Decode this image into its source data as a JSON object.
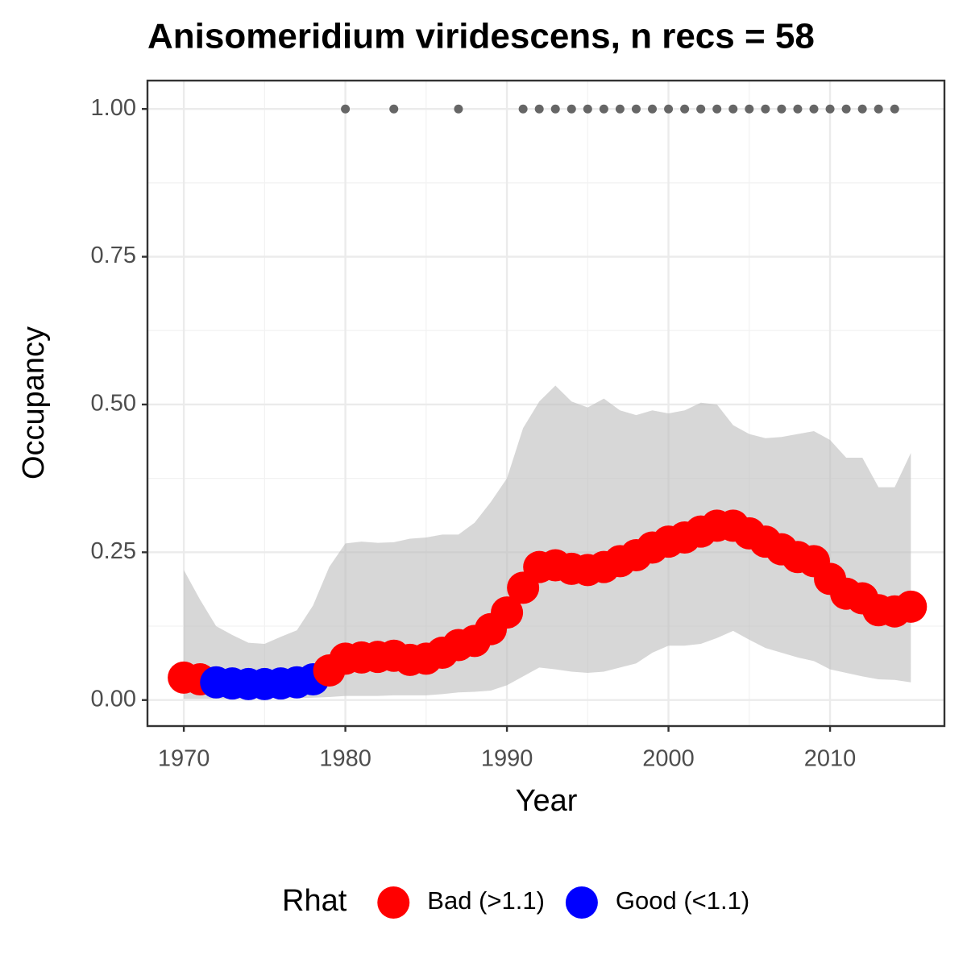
{
  "chart_data": {
    "type": "scatter",
    "title": "Anisomeridium viridescens, n recs = 58",
    "x_label": "Year",
    "y_label": "Occupancy",
    "x": [
      1970,
      1971,
      1972,
      1973,
      1974,
      1975,
      1976,
      1977,
      1978,
      1979,
      1980,
      1981,
      1982,
      1983,
      1984,
      1985,
      1986,
      1987,
      1988,
      1989,
      1990,
      1991,
      1992,
      1993,
      1994,
      1995,
      1996,
      1997,
      1998,
      1999,
      2000,
      2001,
      2002,
      2003,
      2004,
      2005,
      2006,
      2007,
      2008,
      2009,
      2010,
      2011,
      2012,
      2013,
      2014,
      2015
    ],
    "series": [
      {
        "name": "Bad (>1.1)",
        "color": "#ff0000",
        "values": [
          0.038,
          0.035,
          null,
          null,
          null,
          null,
          null,
          null,
          null,
          0.05,
          0.07,
          0.072,
          0.073,
          0.075,
          0.068,
          0.07,
          0.08,
          0.093,
          0.1,
          0.12,
          0.148,
          0.19,
          0.225,
          0.228,
          0.222,
          0.22,
          0.225,
          0.235,
          0.245,
          0.258,
          0.268,
          0.275,
          0.285,
          0.295,
          0.295,
          0.282,
          0.268,
          0.255,
          0.242,
          0.235,
          0.205,
          0.18,
          0.172,
          0.152,
          0.15,
          0.158
        ]
      },
      {
        "name": "Good (<1.1)",
        "color": "#0000ff",
        "values": [
          null,
          null,
          0.03,
          0.028,
          0.027,
          0.027,
          0.028,
          0.03,
          0.035,
          null,
          null,
          null,
          null,
          null,
          null,
          null,
          null,
          null,
          null,
          null,
          null,
          null,
          null,
          null,
          null,
          null,
          null,
          null,
          null,
          null,
          null,
          null,
          null,
          null,
          null,
          null,
          null,
          null,
          null,
          null,
          null,
          null,
          null,
          null,
          null,
          null
        ]
      }
    ],
    "ribbon": {
      "color": "#bdbdbd",
      "upper": [
        0.22,
        0.17,
        0.125,
        0.11,
        0.097,
        0.095,
        0.107,
        0.118,
        0.16,
        0.225,
        0.265,
        0.268,
        0.266,
        0.267,
        0.273,
        0.275,
        0.28,
        0.28,
        0.3,
        0.335,
        0.375,
        0.46,
        0.505,
        0.532,
        0.505,
        0.495,
        0.51,
        0.49,
        0.482,
        0.49,
        0.485,
        0.49,
        0.503,
        0.5,
        0.465,
        0.45,
        0.443,
        0.445,
        0.45,
        0.455,
        0.44,
        0.41,
        0.41,
        0.36,
        0.36,
        0.418
      ],
      "lower": [
        0.002,
        0.002,
        0.002,
        0.002,
        0.002,
        0.003,
        0.003,
        0.003,
        0.004,
        0.005,
        0.007,
        0.007,
        0.007,
        0.008,
        0.008,
        0.008,
        0.01,
        0.013,
        0.014,
        0.016,
        0.025,
        0.04,
        0.055,
        0.052,
        0.048,
        0.046,
        0.048,
        0.055,
        0.062,
        0.08,
        0.092,
        0.092,
        0.095,
        0.105,
        0.117,
        0.102,
        0.088,
        0.08,
        0.072,
        0.066,
        0.052,
        0.046,
        0.04,
        0.035,
        0.034,
        0.03
      ]
    },
    "records": {
      "color": "#666666",
      "x": [
        1980,
        1983,
        1987,
        1991,
        1992,
        1993,
        1994,
        1995,
        1996,
        1997,
        1998,
        1999,
        2000,
        2001,
        2002,
        2003,
        2004,
        2005,
        2006,
        2007,
        2008,
        2009,
        2010,
        2011,
        2012,
        2013,
        2014
      ],
      "values": [
        1,
        1,
        1,
        1,
        1,
        1,
        1,
        1,
        1,
        1,
        1,
        1,
        1,
        1,
        1,
        1,
        1,
        1,
        1,
        1,
        1,
        1,
        1,
        1,
        1,
        1,
        1
      ]
    },
    "legend_title": "Rhat",
    "legend_position": "bottom",
    "xlim": [
      1967.75,
      2017.08
    ],
    "ylim": [
      -0.044,
      1.048
    ],
    "xticks": [
      1970,
      1980,
      1990,
      2000,
      2010
    ],
    "yticks": [
      {
        "value": 0,
        "label": "0.00"
      },
      {
        "value": 0.25,
        "label": "0.25"
      },
      {
        "value": 0.5,
        "label": "0.50"
      },
      {
        "value": 0.75,
        "label": "0.75"
      },
      {
        "value": 1,
        "label": "1.00"
      }
    ],
    "grid": true
  }
}
